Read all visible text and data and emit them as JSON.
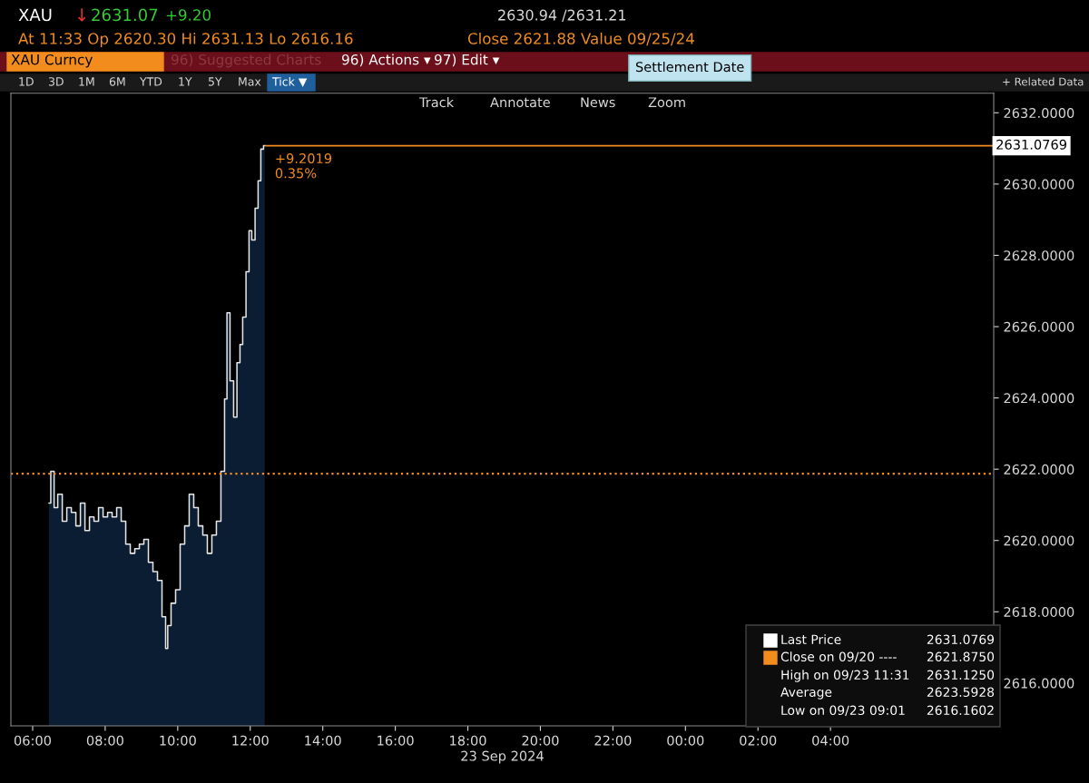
{
  "chart_data": {
    "type": "area",
    "x": [
      "2024-09-23T06:27",
      "2024-09-23T06:33",
      "2024-09-23T06:38",
      "2024-09-23T06:45",
      "2024-09-23T06:53",
      "2024-09-23T07:00",
      "2024-09-23T07:08",
      "2024-09-23T07:15",
      "2024-09-23T07:23",
      "2024-09-23T07:30",
      "2024-09-23T07:38",
      "2024-09-23T07:45",
      "2024-09-23T07:53",
      "2024-09-23T08:00",
      "2024-09-23T08:08",
      "2024-09-23T08:15",
      "2024-09-23T08:23",
      "2024-09-23T08:30",
      "2024-09-23T08:38",
      "2024-09-23T08:45",
      "2024-09-23T08:53",
      "2024-09-23T09:00",
      "2024-09-23T09:08",
      "2024-09-23T09:15",
      "2024-09-23T09:23",
      "2024-09-23T09:30",
      "2024-09-23T09:38",
      "2024-09-23T09:42",
      "2024-09-23T09:45",
      "2024-09-23T09:53",
      "2024-09-23T10:00",
      "2024-09-23T10:08",
      "2024-09-23T10:15",
      "2024-09-23T10:23",
      "2024-09-23T10:30",
      "2024-09-23T10:38",
      "2024-09-23T10:45",
      "2024-09-23T10:53",
      "2024-09-23T11:00",
      "2024-09-23T11:08",
      "2024-09-23T11:15",
      "2024-09-23T11:20",
      "2024-09-23T11:23",
      "2024-09-23T11:30",
      "2024-09-23T11:35",
      "2024-09-23T11:41",
      "2024-09-23T11:45",
      "2024-09-23T11:50",
      "2024-09-23T11:56",
      "2024-09-23T12:00",
      "2024-09-23T12:05",
      "2024-09-23T12:11",
      "2024-09-23T12:15",
      "2024-09-23T12:20",
      "2024-09-23T12:24"
    ],
    "series": [
      {
        "color": "#e6e6e6",
        "values": [
          2621.05,
          2621.94,
          2620.92,
          2621.3,
          2620.54,
          2620.92,
          2620.79,
          2620.41,
          2621.05,
          2620.28,
          2620.66,
          2620.54,
          2620.92,
          2620.66,
          2620.79,
          2620.66,
          2620.92,
          2620.54,
          2619.9,
          2619.64,
          2619.77,
          2619.9,
          2620.03,
          2619.39,
          2619.13,
          2618.88,
          2617.86,
          2616.97,
          2617.61,
          2618.24,
          2618.62,
          2619.9,
          2620.41,
          2621.3,
          2620.92,
          2620.41,
          2620.15,
          2619.64,
          2620.15,
          2620.54,
          2621.94,
          2623.97,
          2626.39,
          2624.48,
          2623.46,
          2624.99,
          2625.5,
          2626.27,
          2627.54,
          2628.69,
          2628.43,
          2629.32,
          2630.09,
          2630.98,
          2631.08
        ]
      }
    ],
    "xlim": [
      "2024-09-23T05:24",
      "2024-09-24T08:30"
    ],
    "xticks": [
      {
        "value": "2024-09-23T06:00",
        "label": "06:00"
      },
      {
        "value": "2024-09-23T08:00",
        "label": "08:00"
      },
      {
        "value": "2024-09-23T10:00",
        "label": "10:00"
      },
      {
        "value": "2024-09-23T12:00",
        "label": "12:00"
      },
      {
        "value": "2024-09-23T14:00",
        "label": "14:00"
      },
      {
        "value": "2024-09-23T16:00",
        "label": "16:00"
      },
      {
        "value": "2024-09-23T18:00",
        "label": "18:00"
      },
      {
        "value": "2024-09-23T20:00",
        "label": "20:00"
      },
      {
        "value": "2024-09-23T22:00",
        "label": "22:00"
      },
      {
        "value": "2024-09-24T00:00",
        "label": "00:00"
      },
      {
        "value": "2024-09-24T02:00",
        "label": "02:00"
      },
      {
        "value": "2024-09-24T04:00",
        "label": "04:00"
      }
    ],
    "ylim": [
      2614.8,
      2632.55
    ],
    "yticks": [
      {
        "value": 2616,
        "label": "2616.0000"
      },
      {
        "value": 2618,
        "label": "2618.0000"
      },
      {
        "value": 2620,
        "label": "2620.0000"
      },
      {
        "value": 2622,
        "label": "2622.0000"
      },
      {
        "value": 2624,
        "label": "2624.0000"
      },
      {
        "value": 2626,
        "label": "2626.0000"
      },
      {
        "value": 2628,
        "label": "2628.0000"
      },
      {
        "value": 2630,
        "label": "2630.0000"
      },
      {
        "value": 2632,
        "label": "2632.0000"
      }
    ],
    "xlabel": "23 Sep 2024",
    "grid": false,
    "legend": false,
    "ref_lines": [
      {
        "axis": "y",
        "value": 2621.875,
        "color": "#f28c1c",
        "line_style": "dotted"
      },
      {
        "axis": "y",
        "value": 2631.0769,
        "label": "2631.0769",
        "color": "#f28c1c",
        "line_style": "solid"
      }
    ],
    "annotations": [
      {
        "text": "+9.2019\n0.35%",
        "x": "2024-09-23T12:24",
        "y": 2631.08
      },
      "XAU",
      "↓",
      "2631.07",
      "+9.20",
      "2630.94 /2631.21",
      "At 11:33 Op 2620.30 Hi 2631.13 Lo 2616.16",
      "Close 2621.88 Value 09/25/24",
      "XAU Curncy",
      "96) Suggested Charts",
      "96) Actions ▾",
      "97) Edit ▾",
      "Settlement Date",
      "1D",
      "3D",
      "1M",
      "6M",
      "YTD",
      "1Y",
      "5Y",
      "Max",
      "Tick ▼",
      "+ Related Data",
      "Track",
      "Annotate",
      "News",
      "Zoom",
      "Last Price",
      "2631.0769",
      "Close on 09/20 ----",
      "2621.8750",
      "High on 09/23 11:31",
      "2631.1250",
      "Average",
      "2623.5928",
      "Low on 09/23 09:01",
      "2616.1602"
    ]
  }
}
